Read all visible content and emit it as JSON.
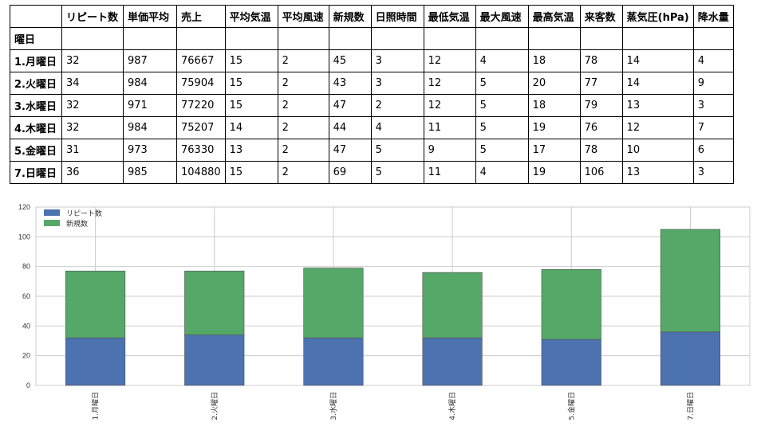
{
  "table": {
    "corner": "",
    "index_name": "曜日",
    "columns": [
      "リピート数",
      "単価平均",
      "売上",
      "平均気温",
      "平均風速",
      "新規数",
      "日照時間",
      "最低気温",
      "最大風速",
      "最高気温",
      "来客数",
      "蒸気圧(hPa)",
      "降水量"
    ],
    "rows": [
      {
        "label": "1.月曜日",
        "values": [
          "32",
          "987",
          "76667",
          "15",
          "2",
          "45",
          "3",
          "12",
          "4",
          "18",
          "78",
          "14",
          "4"
        ]
      },
      {
        "label": "2.火曜日",
        "values": [
          "34",
          "984",
          "75904",
          "15",
          "2",
          "43",
          "3",
          "12",
          "5",
          "20",
          "77",
          "14",
          "9"
        ]
      },
      {
        "label": "3.水曜日",
        "values": [
          "32",
          "971",
          "77220",
          "15",
          "2",
          "47",
          "2",
          "12",
          "5",
          "18",
          "79",
          "13",
          "3"
        ]
      },
      {
        "label": "4.木曜日",
        "values": [
          "32",
          "984",
          "75207",
          "14",
          "2",
          "44",
          "4",
          "11",
          "5",
          "19",
          "76",
          "12",
          "7"
        ]
      },
      {
        "label": "5.金曜日",
        "values": [
          "31",
          "973",
          "76330",
          "13",
          "2",
          "47",
          "5",
          "9",
          "5",
          "17",
          "78",
          "10",
          "6"
        ]
      },
      {
        "label": "7.日曜日",
        "values": [
          "36",
          "985",
          "104880",
          "15",
          "2",
          "69",
          "5",
          "11",
          "4",
          "19",
          "106",
          "13",
          "3"
        ]
      }
    ]
  },
  "chart_data": {
    "type": "bar",
    "stacked": true,
    "categories": [
      "1.月曜日",
      "2.火曜日",
      "3.水曜日",
      "4.木曜日",
      "5.金曜日",
      "7.日曜日"
    ],
    "series": [
      {
        "name": "リピート数",
        "values": [
          32,
          34,
          32,
          32,
          31,
          36
        ],
        "color": "#4c72b0"
      },
      {
        "name": "新規数",
        "values": [
          45,
          43,
          47,
          44,
          47,
          69
        ],
        "color": "#55a868"
      }
    ],
    "ylim": [
      0,
      120
    ],
    "yticks": [
      0,
      20,
      40,
      60,
      80,
      100,
      120
    ],
    "grid": true,
    "legend": "top-left"
  }
}
